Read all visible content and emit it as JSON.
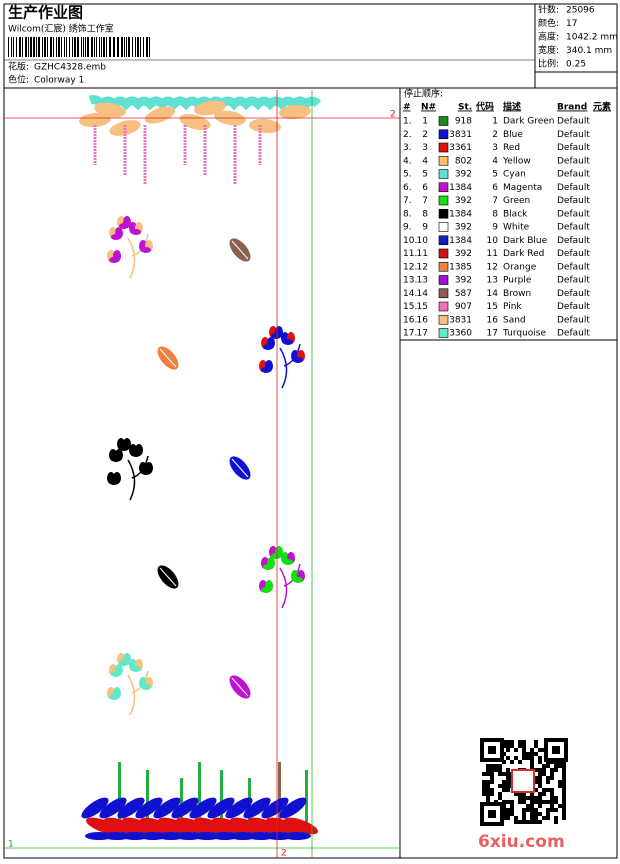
{
  "header": {
    "title": "生产作业图",
    "subtitle": "Wilcom(汇宸) 绣饰工作室",
    "design_label": "花版:",
    "design": "GZHC4328.emb",
    "colorway_label": "色位:",
    "colorway": "Colorway 1"
  },
  "stats": [
    {
      "label": "针数:",
      "value": "25096"
    },
    {
      "label": "颜色:",
      "value": "17"
    },
    {
      "label": "高度:",
      "value": "1042.2 mm"
    },
    {
      "label": "宽度:",
      "value": "340.1 mm"
    },
    {
      "label": "比例:",
      "value": "0.25"
    }
  ],
  "markers": {
    "top_right": "2",
    "bottom_left": "1",
    "bottom": "2"
  },
  "sequence": {
    "title": "停止顺序:",
    "headers": [
      "#",
      "N#",
      "St.",
      "代码",
      "描述",
      "Brand",
      "元素"
    ],
    "rows": [
      [
        "1.",
        "1",
        "#1a8a1a",
        "918",
        "1",
        "Dark Green",
        "Default"
      ],
      [
        "2.",
        "2",
        "#1010d0",
        "3831",
        "2",
        "Blue",
        "Default"
      ],
      [
        "3.",
        "3",
        "#e01010",
        "3361",
        "3",
        "Red",
        "Default"
      ],
      [
        "4.",
        "4",
        "#f6c070",
        "802",
        "4",
        "Yellow",
        "Default"
      ],
      [
        "5.",
        "5",
        "#60e0d0",
        "392",
        "5",
        "Cyan",
        "Default"
      ],
      [
        "6.",
        "6",
        "#c010d0",
        "1384",
        "6",
        "Magenta",
        "Default"
      ],
      [
        "7.",
        "7",
        "#10e010",
        "392",
        "7",
        "Green",
        "Default"
      ],
      [
        "8.",
        "8",
        "#000000",
        "1384",
        "8",
        "Black",
        "Default"
      ],
      [
        "9.",
        "9",
        "#ffffff",
        "392",
        "9",
        "White",
        "Default"
      ],
      [
        "10.",
        "10",
        "#1020c0",
        "1384",
        "10",
        "Dark Blue",
        "Default"
      ],
      [
        "11.",
        "11",
        "#d01010",
        "392",
        "11",
        "Dark Red",
        "Default"
      ],
      [
        "12.",
        "12",
        "#f08040",
        "1385",
        "12",
        "Orange",
        "Default"
      ],
      [
        "13.",
        "13",
        "#a010d0",
        "392",
        "13",
        "Purple",
        "Default"
      ],
      [
        "14.",
        "14",
        "#8a6050",
        "587",
        "14",
        "Brown",
        "Default"
      ],
      [
        "15.",
        "15",
        "#f070c0",
        "907",
        "15",
        "Pink",
        "Default"
      ],
      [
        "16.",
        "16",
        "#f6c080",
        "3831",
        "16",
        "Sand",
        "Default"
      ],
      [
        "17.",
        "17",
        "#60e8c8",
        "3360",
        "17",
        "Turquoise",
        "Default"
      ]
    ]
  },
  "watermark": "6xiu.com"
}
